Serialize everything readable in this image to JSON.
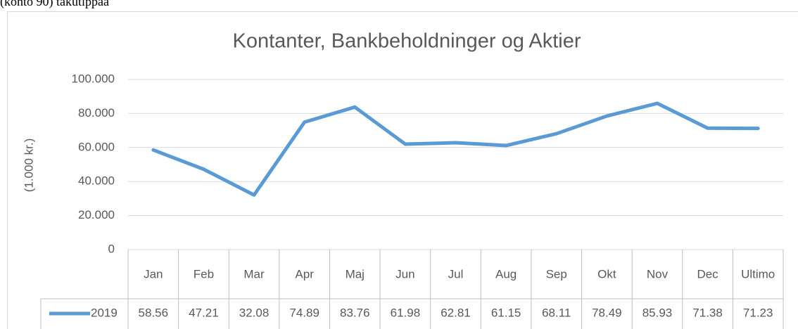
{
  "header_text": "(konto 90) takutippaa",
  "chart_data": {
    "type": "line",
    "title": "Kontanter, Bankbeholdninger og Aktier",
    "y_axis_label": "(1.000 kr.)",
    "categories": [
      "Jan",
      "Feb",
      "Mar",
      "Apr",
      "Maj",
      "Jun",
      "Jul",
      "Aug",
      "Sep",
      "Okt",
      "Nov",
      "Dec",
      "Ultimo"
    ],
    "series": [
      {
        "name": "2019",
        "color": "#5b9bd5",
        "values": [
          58560,
          47210,
          32080,
          74890,
          83760,
          61980,
          62810,
          61150,
          68110,
          78490,
          85930,
          71380,
          71230
        ],
        "value_labels": [
          "58.56",
          "47.21",
          "32.08",
          "74.89",
          "83.76",
          "61.98",
          "62.81",
          "61.15",
          "68.11",
          "78.49",
          "85.93",
          "71.38",
          "71.23"
        ]
      }
    ],
    "ylim": [
      0,
      100000
    ],
    "yticks": [
      0,
      {
        "value": 20000,
        "label": "20.000"
      },
      {
        "value": 40000,
        "label": "40.000"
      },
      {
        "value": 60000,
        "label": "60.000"
      },
      {
        "value": 80000,
        "label": "80.000"
      },
      {
        "value": 100000,
        "label": "100.000"
      }
    ],
    "grid": true,
    "data_table": true
  }
}
